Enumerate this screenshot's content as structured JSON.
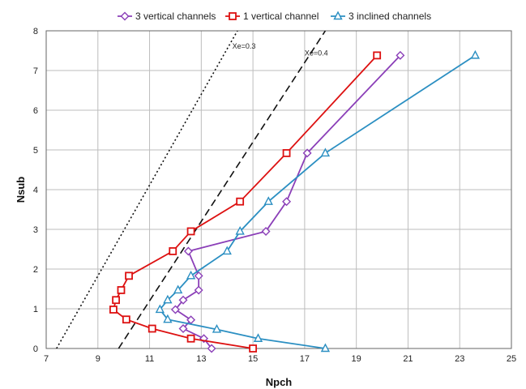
{
  "chart_data": {
    "type": "line",
    "xlabel": "Npch",
    "ylabel": "Nsub",
    "xlim": [
      7,
      25
    ],
    "ylim": [
      0,
      8
    ],
    "x_ticks": [
      "7",
      "9",
      "11",
      "13",
      "15",
      "17",
      "19",
      "21",
      "23",
      "25"
    ],
    "y_ticks": [
      "0",
      "1",
      "2",
      "3",
      "4",
      "5",
      "6",
      "7",
      "8"
    ],
    "grid": true,
    "legend_position": "top",
    "series": [
      {
        "name": "3 vertical channels",
        "color": "#8b3fb8",
        "marker": "diamond",
        "points": [
          [
            13.4,
            0.0
          ],
          [
            13.1,
            0.25
          ],
          [
            12.3,
            0.5
          ],
          [
            12.6,
            0.72
          ],
          [
            12.0,
            0.98
          ],
          [
            12.3,
            1.22
          ],
          [
            12.9,
            1.47
          ],
          [
            12.9,
            1.83
          ],
          [
            12.5,
            2.45
          ],
          [
            15.5,
            2.95
          ],
          [
            16.3,
            3.7
          ],
          [
            17.1,
            4.92
          ],
          [
            20.7,
            7.38
          ]
        ]
      },
      {
        "name": "1 vertical channel",
        "color": "#dd1111",
        "marker": "square",
        "points": [
          [
            15.0,
            0.0
          ],
          [
            12.6,
            0.25
          ],
          [
            11.1,
            0.5
          ],
          [
            10.1,
            0.73
          ],
          [
            9.6,
            0.98
          ],
          [
            9.7,
            1.22
          ],
          [
            9.9,
            1.47
          ],
          [
            10.2,
            1.83
          ],
          [
            11.9,
            2.45
          ],
          [
            12.6,
            2.95
          ],
          [
            14.5,
            3.7
          ],
          [
            16.3,
            4.92
          ],
          [
            19.8,
            7.38
          ]
        ]
      },
      {
        "name": "3 inclined channels",
        "color": "#2b8fc2",
        "marker": "triangle",
        "points": [
          [
            17.8,
            0.0
          ],
          [
            15.2,
            0.25
          ],
          [
            13.6,
            0.48
          ],
          [
            11.7,
            0.73
          ],
          [
            11.4,
            0.98
          ],
          [
            11.7,
            1.22
          ],
          [
            12.1,
            1.47
          ],
          [
            12.6,
            1.83
          ],
          [
            14.0,
            2.45
          ],
          [
            14.5,
            2.95
          ],
          [
            15.6,
            3.7
          ],
          [
            17.8,
            4.92
          ],
          [
            23.6,
            7.38
          ]
        ]
      }
    ],
    "reference_lines": [
      {
        "label": "Xe=0.3",
        "style": "dotted",
        "x": [
          7.4,
          14.4
        ],
        "y": [
          0,
          8
        ]
      },
      {
        "label": "Xe=0.4",
        "style": "dashed",
        "x": [
          9.8,
          17.8
        ],
        "y": [
          0,
          8
        ]
      }
    ]
  }
}
